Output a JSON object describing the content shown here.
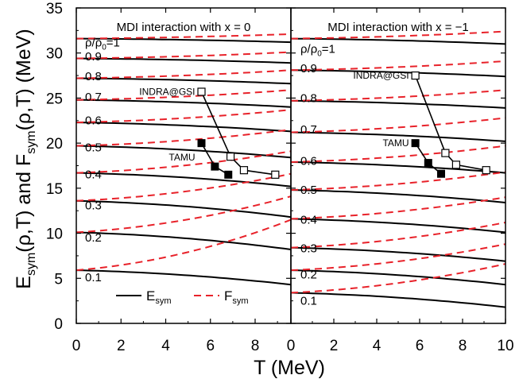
{
  "figure": {
    "y_axis_label_parts": {
      "e": "E",
      "e_sub": "sym",
      "mid": "(ρ,T) and F",
      "f_sub": "sym",
      "tail": "(ρ,T) (MeV)"
    },
    "x_axis_label": "T (MeV)",
    "density_label": {
      "rho": "ρ/ρ",
      "sub": "0",
      "eq": "=1"
    },
    "colors": {
      "esym": "#000000",
      "fsym": "#e8222a"
    },
    "legend": {
      "esym_main": "E",
      "esym_sub": "sym",
      "fsym_main": "F",
      "fsym_sub": "sym"
    }
  },
  "chart_data": [
    {
      "type": "line",
      "title": "MDI interaction with x = 0",
      "xlabel": "T (MeV)",
      "ylabel": "Esym(ρ,T) and Fsym(ρ,T) (MeV)",
      "xlim": [
        0,
        9.6
      ],
      "ylim": [
        0,
        35
      ],
      "xticks": [
        0,
        2,
        4,
        6,
        8
      ],
      "yticks": [
        0,
        5,
        10,
        15,
        20,
        25,
        30,
        35
      ],
      "density_labels": [
        "0.9",
        "0.8",
        "0.7",
        "0.6",
        "0.5",
        "0.4",
        "0.3",
        "0.2",
        "0.1"
      ],
      "density_label_y": [
        29.7,
        27.5,
        25.2,
        22.6,
        19.6,
        16.6,
        13.2,
        9.6,
        5.2
      ],
      "esym_curves": [
        {
          "rho": "1",
          "y0": 31.6,
          "y1": 31.2
        },
        {
          "rho": "0.9",
          "y0": 29.4,
          "y1": 28.9
        },
        {
          "rho": "0.8",
          "y0": 27.2,
          "y1": 26.6
        },
        {
          "rho": "0.7",
          "y0": 24.8,
          "y1": 24.0
        },
        {
          "rho": "0.6",
          "y0": 22.3,
          "y1": 21.3
        },
        {
          "rho": "0.5",
          "y0": 19.7,
          "y1": 18.4
        },
        {
          "rho": "0.4",
          "y0": 16.7,
          "y1": 15.2
        },
        {
          "rho": "0.3",
          "y0": 13.6,
          "y1": 11.8
        },
        {
          "rho": "0.2",
          "y0": 10.1,
          "y1": 8.2
        },
        {
          "rho": "0.1",
          "y0": 5.9,
          "y1": 4.3
        }
      ],
      "fsym_curves": [
        {
          "rho": "1",
          "y0": 31.6,
          "y1": 32.1
        },
        {
          "rho": "0.9",
          "y0": 29.4,
          "y1": 30.1
        },
        {
          "rho": "0.8",
          "y0": 27.2,
          "y1": 28.1
        },
        {
          "rho": "0.7",
          "y0": 24.8,
          "y1": 25.9
        },
        {
          "rho": "0.6",
          "y0": 22.3,
          "y1": 23.7
        },
        {
          "rho": "0.5",
          "y0": 19.7,
          "y1": 21.5
        },
        {
          "rho": "0.4",
          "y0": 16.7,
          "y1": 19.1
        },
        {
          "rho": "0.3",
          "y0": 13.6,
          "y1": 16.6
        },
        {
          "rho": "0.2",
          "y0": 10.1,
          "y1": 14.1
        },
        {
          "rho": "0.1",
          "y0": 5.9,
          "y1": 11.5
        }
      ],
      "tamu": {
        "label": "TAMU",
        "x": [
          5.6,
          6.2,
          6.8
        ],
        "y": [
          20.0,
          17.4,
          16.5
        ]
      },
      "indra": {
        "label": "INDRA@GSI",
        "x": [
          5.6,
          6.9,
          7.5,
          8.9
        ],
        "y": [
          25.7,
          18.5,
          17.0,
          16.5
        ]
      }
    },
    {
      "type": "line",
      "title": "MDI interaction with x = −1",
      "xlabel": "T (MeV)",
      "xlim": [
        0,
        10
      ],
      "ylim": [
        0,
        35
      ],
      "xticks": [
        0,
        2,
        4,
        6,
        8,
        10
      ],
      "yticks": [
        0,
        5,
        10,
        15,
        20,
        25,
        30,
        35
      ],
      "density_labels": [
        "0.9",
        "0.8",
        "0.7",
        "0.6",
        "0.5",
        "0.4",
        "0.3",
        "0.2",
        "0.1"
      ],
      "density_label_y": [
        28.4,
        25.1,
        21.6,
        18.1,
        14.9,
        11.6,
        8.4,
        5.5,
        2.6
      ],
      "esym_curves": [
        {
          "rho": "1",
          "y0": 31.6,
          "y1": 31.0
        },
        {
          "rho": "0.9",
          "y0": 28.1,
          "y1": 27.4
        },
        {
          "rho": "0.8",
          "y0": 24.7,
          "y1": 23.9
        },
        {
          "rho": "0.7",
          "y0": 21.2,
          "y1": 20.2
        },
        {
          "rho": "0.6",
          "y0": 17.9,
          "y1": 16.7
        },
        {
          "rho": "0.5",
          "y0": 14.8,
          "y1": 13.4
        },
        {
          "rho": "0.4",
          "y0": 11.6,
          "y1": 10.1
        },
        {
          "rho": "0.3",
          "y0": 8.4,
          "y1": 6.9
        },
        {
          "rho": "0.2",
          "y0": 5.9,
          "y1": 4.3
        },
        {
          "rho": "0.1",
          "y0": 3.4,
          "y1": 1.8
        }
      ],
      "fsym_curves": [
        {
          "rho": "1",
          "y0": 31.6,
          "y1": 32.4
        },
        {
          "rho": "0.9",
          "y0": 28.1,
          "y1": 29.1
        },
        {
          "rho": "0.8",
          "y0": 24.7,
          "y1": 25.9
        },
        {
          "rho": "0.7",
          "y0": 21.2,
          "y1": 22.8
        },
        {
          "rho": "0.6",
          "y0": 17.9,
          "y1": 19.7
        },
        {
          "rho": "0.5",
          "y0": 14.8,
          "y1": 16.8
        },
        {
          "rho": "0.4",
          "y0": 11.6,
          "y1": 14.0
        },
        {
          "rho": "0.3",
          "y0": 8.4,
          "y1": 11.2
        },
        {
          "rho": "0.2",
          "y0": 5.9,
          "y1": 8.8
        },
        {
          "rho": "0.1",
          "y0": 3.4,
          "y1": 6.6
        }
      ],
      "tamu": {
        "label": "TAMU",
        "x": [
          5.8,
          6.4,
          7.0
        ],
        "y": [
          20.0,
          17.8,
          16.6
        ]
      },
      "indra": {
        "label": "INDRA@GSI",
        "x": [
          5.8,
          7.2,
          7.7,
          9.1
        ],
        "y": [
          27.5,
          18.9,
          17.6,
          17.0
        ]
      }
    }
  ]
}
